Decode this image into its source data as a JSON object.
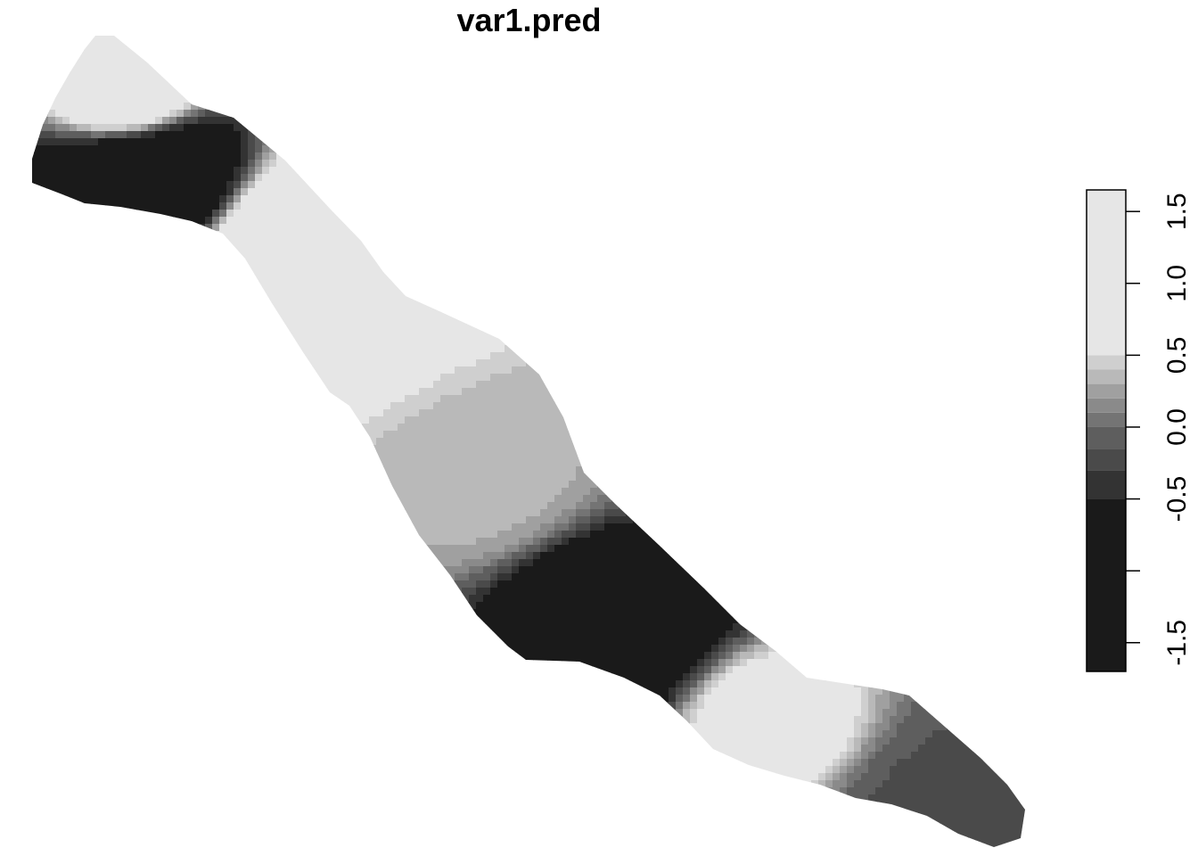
{
  "chart_data": {
    "type": "heatmap",
    "title": "var1.pred",
    "xlabel": "",
    "ylabel": "",
    "axes_visible": false,
    "grid": false,
    "legend": {
      "placement": "right",
      "orientation": "vertical",
      "range": [
        -1.7,
        1.65
      ],
      "ticks": [
        -1.5,
        -1.0,
        -0.5,
        0.0,
        0.5,
        1.0,
        1.5
      ],
      "tick_labels": [
        "-1.5",
        "",
        "-0.5",
        "0.0",
        "0.5",
        "1.0",
        "1.5"
      ],
      "bands": [
        {
          "from": -1.7,
          "to": -0.5,
          "color": "#1a1a1a"
        },
        {
          "from": -0.5,
          "to": -0.3,
          "color": "#333333"
        },
        {
          "from": -0.3,
          "to": -0.15,
          "color": "#4a4a4a"
        },
        {
          "from": -0.15,
          "to": 0.0,
          "color": "#5e5e5e"
        },
        {
          "from": 0.0,
          "to": 0.1,
          "color": "#747474"
        },
        {
          "from": 0.1,
          "to": 0.2,
          "color": "#8a8a8a"
        },
        {
          "from": 0.2,
          "to": 0.3,
          "color": "#a0a0a0"
        },
        {
          "from": 0.3,
          "to": 0.4,
          "color": "#b9b9b9"
        },
        {
          "from": 0.4,
          "to": 0.5,
          "color": "#cfcfcf"
        },
        {
          "from": 0.5,
          "to": 1.65,
          "color": "#e6e6e6"
        }
      ]
    },
    "field": {
      "description_value_range": [
        -1.7,
        1.65
      ],
      "hotspots": [
        {
          "x": 0.1,
          "y": 0.92,
          "value": 1.2,
          "radius": 0.08
        },
        {
          "x": 0.12,
          "y": 0.82,
          "value": -1.6,
          "radius": 0.1
        },
        {
          "x": 0.27,
          "y": 0.72,
          "value": 1.4,
          "radius": 0.12
        },
        {
          "x": 0.46,
          "y": 0.45,
          "value": 0.35,
          "radius": 0.12
        },
        {
          "x": 0.56,
          "y": 0.3,
          "value": -1.6,
          "radius": 0.09
        },
        {
          "x": 0.74,
          "y": 0.16,
          "value": 0.8,
          "radius": 0.07
        },
        {
          "x": 0.92,
          "y": 0.04,
          "value": -0.2,
          "radius": 0.1
        }
      ],
      "base_value": 0.05
    }
  }
}
